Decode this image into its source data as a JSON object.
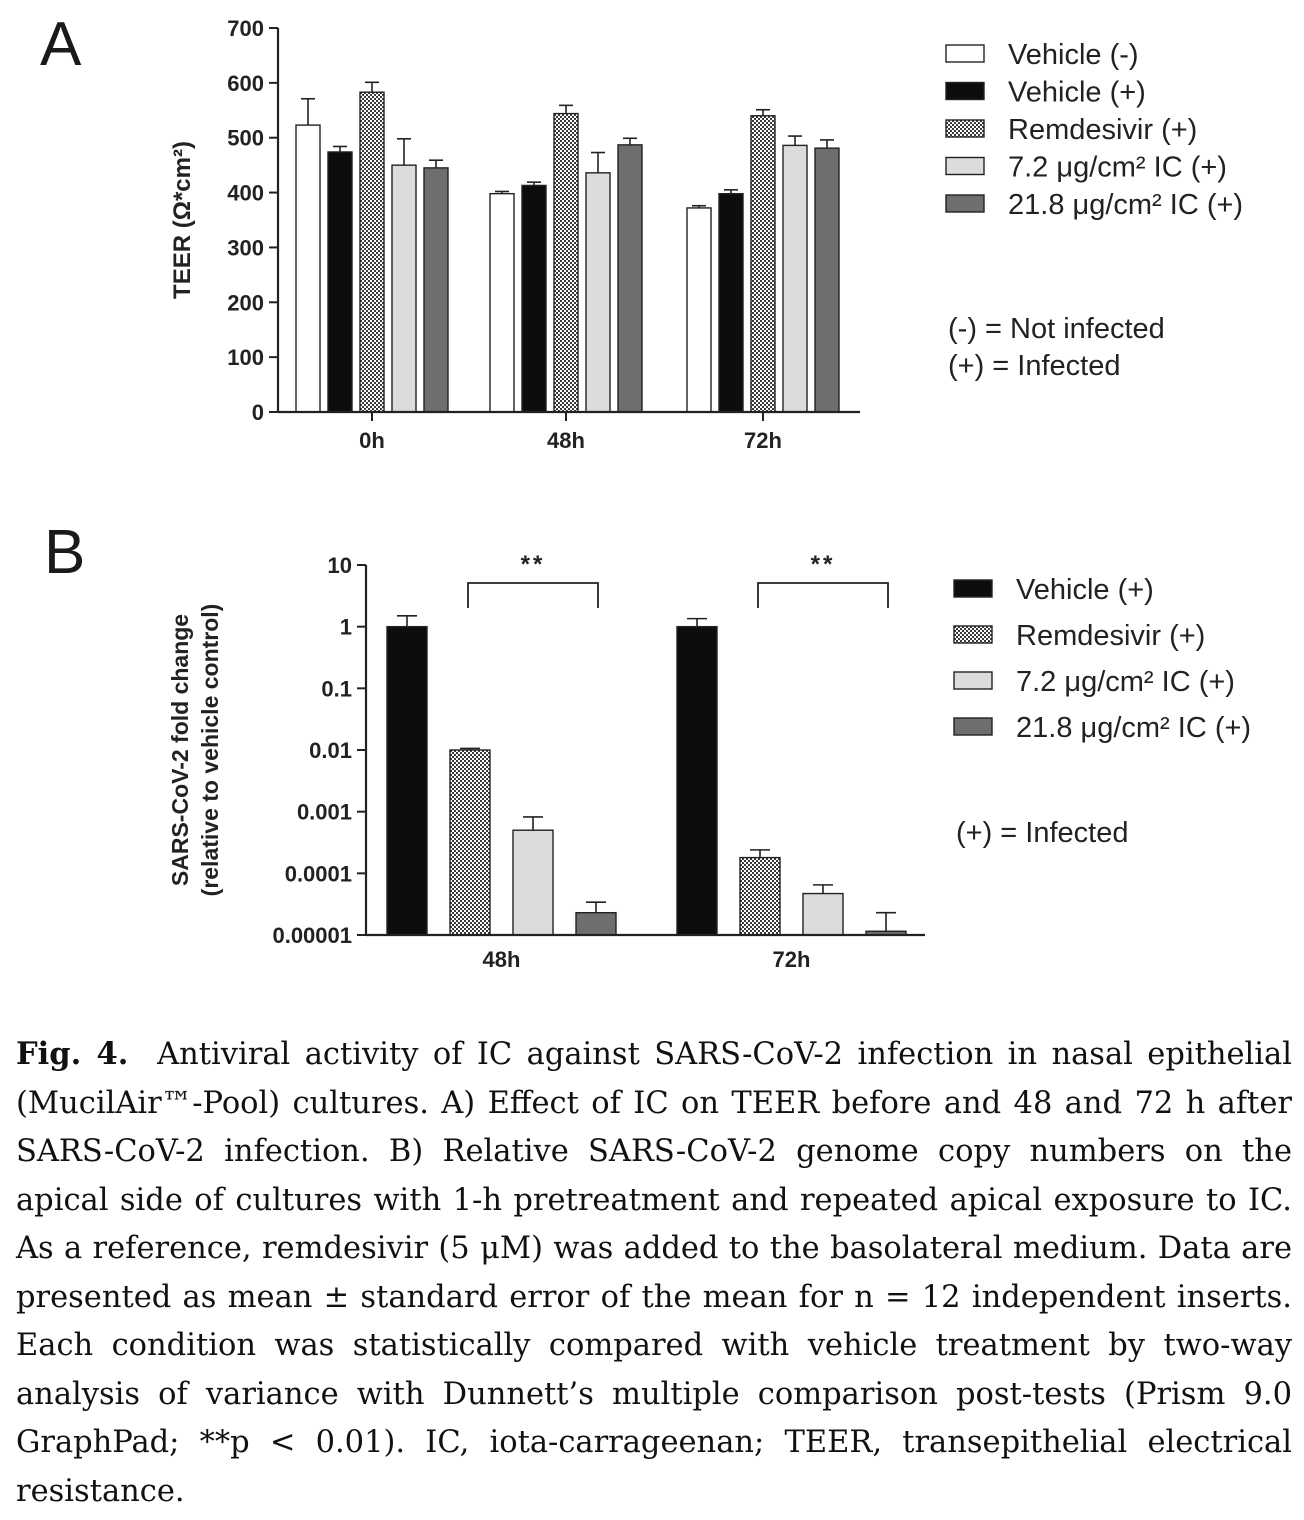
{
  "panel_a": {
    "letter": "A",
    "legend": [
      {
        "label": "Vehicle (-)",
        "fill": "white"
      },
      {
        "label": "Vehicle (+)",
        "fill": "black"
      },
      {
        "label": "Remdesivir (+)",
        "fill": "checker"
      },
      {
        "label": "7.2 μg/cm² IC (+)",
        "fill": "lightgray"
      },
      {
        "label": "21.8 μg/cm² IC (+)",
        "fill": "darkgray"
      }
    ],
    "notes": [
      "(-)  = Not infected",
      "(+) = Infected"
    ]
  },
  "panel_b": {
    "letter": "B",
    "legend": [
      {
        "label": "Vehicle (+)",
        "fill": "black"
      },
      {
        "label": "Remdesivir (+)",
        "fill": "checker"
      },
      {
        "label": "7.2 μg/cm² IC (+)",
        "fill": "lightgray"
      },
      {
        "label": "21.8 μg/cm² IC (+)",
        "fill": "darkgray"
      }
    ],
    "notes": [
      "(+) = Infected"
    ],
    "significance": [
      "**",
      "**"
    ]
  },
  "colors": {
    "black": "#0d0d0d",
    "lightgray": "#dcdcdc",
    "darkgray": "#6e6e6e",
    "white": "#ffffff"
  },
  "chart_data": [
    {
      "type": "bar",
      "ylabel": "TEER (Ω*cm²)",
      "xlabel": "",
      "ylim": [
        0,
        700
      ],
      "yticks": [
        0,
        100,
        200,
        300,
        400,
        500,
        600,
        700
      ],
      "categories": [
        "0h",
        "48h",
        "72h"
      ],
      "series": [
        {
          "name": "Vehicle (-)",
          "values": [
            523,
            398,
            372
          ],
          "errors": [
            48,
            4,
            4
          ]
        },
        {
          "name": "Vehicle (+)",
          "values": [
            474,
            413,
            398
          ],
          "errors": [
            10,
            6,
            7
          ]
        },
        {
          "name": "Remdesivir (+)",
          "values": [
            583,
            544,
            540
          ],
          "errors": [
            18,
            15,
            11
          ]
        },
        {
          "name": "7.2 μg/cm² IC (+)",
          "values": [
            450,
            436,
            486
          ],
          "errors": [
            48,
            37,
            17
          ]
        },
        {
          "name": "21.8 μg/cm² IC (+)",
          "values": [
            445,
            487,
            481
          ],
          "errors": [
            14,
            12,
            15
          ]
        }
      ],
      "grid": false
    },
    {
      "type": "bar",
      "ylabel": "SARS-CoV-2 fold change (relative to vehicle control)",
      "xlabel": "",
      "yscale": "log",
      "ylim": [
        1e-05,
        10
      ],
      "yticks": [
        "0.00001",
        "0.0001",
        "0.001",
        "0.01",
        "0.1",
        "1",
        "10"
      ],
      "categories": [
        "48h",
        "72h"
      ],
      "series": [
        {
          "name": "Vehicle (+)",
          "values": [
            1.0,
            1.0
          ],
          "err_high": [
            1.5,
            1.35
          ]
        },
        {
          "name": "Remdesivir (+)",
          "values": [
            0.01,
            0.00018
          ],
          "err_high": [
            0.0106,
            0.00024
          ]
        },
        {
          "name": "7.2 μg/cm² IC (+)",
          "values": [
            0.0005,
            4.7e-05
          ],
          "err_high": [
            0.00082,
            6.5e-05
          ]
        },
        {
          "name": "21.8 μg/cm² IC (+)",
          "values": [
            2.3e-05,
            1.15e-05
          ],
          "err_high": [
            3.4e-05,
            2.3e-05
          ]
        }
      ],
      "annotations": [
        {
          "text": "**",
          "category": "48h",
          "from_series": 1,
          "to_series": 3
        },
        {
          "text": "**",
          "category": "72h",
          "from_series": 1,
          "to_series": 3
        }
      ],
      "grid": false
    }
  ],
  "caption": {
    "label": "Fig. 4.",
    "text": "Antiviral activity of IC against SARS-CoV-2 infection in nasal epithelial (MucilAir™-Pool) cultures. A) Effect of IC on TEER before and 48 and 72 h after SARS-CoV-2 infection. B) Relative SARS-CoV-2 genome copy numbers on the apical side of cultures with 1-h pretreatment and repeated apical exposure to IC. As a reference, remdesivir (5 μM) was added to the basolateral medium. Data are presented as mean ± standard error of the mean for n = 12 independent inserts. Each condition was statistically compared with vehicle treatment by two-way analysis of variance with Dunnett’s multiple comparison post-tests (Prism 9.0 GraphPad; **p < 0.01). IC, iota-carrageenan; TEER, transepithelial electrical resistance."
  }
}
